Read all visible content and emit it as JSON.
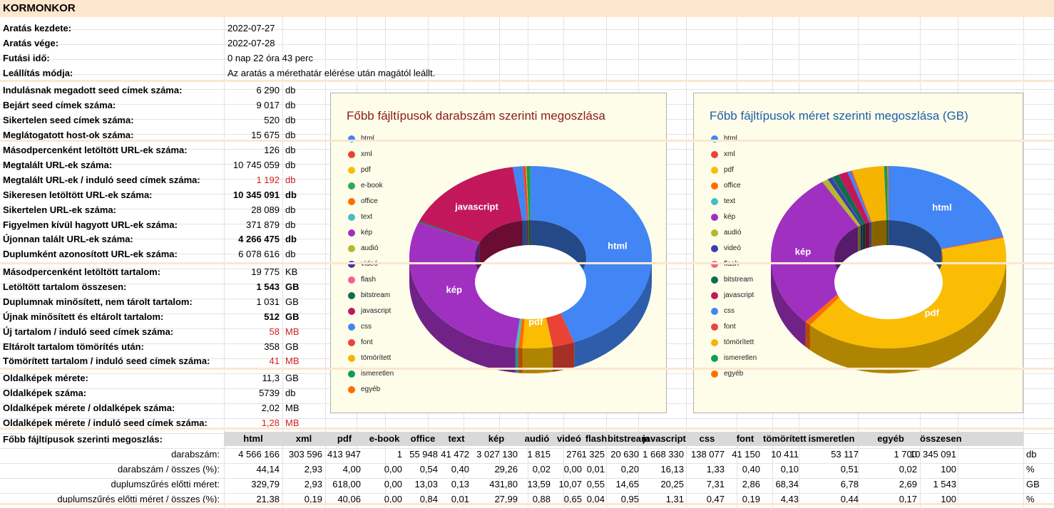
{
  "title": "KORMONKOR",
  "info": [
    {
      "label": "Aratás kezdete:",
      "value": "2022-07-27"
    },
    {
      "label": "Aratás vége:",
      "value": "2022-07-28"
    },
    {
      "label": "Futási idő:",
      "value": "0 nap 22 óra 43 perc"
    },
    {
      "label": "Leállítás módja:",
      "value": "Az aratás a mérethatár elérése után magától leállt."
    }
  ],
  "stats": [
    {
      "label": "Indulásnak megadott seed címek száma:",
      "value": "6 290",
      "unit": "db"
    },
    {
      "label": "Bejárt seed címek száma:",
      "value": "9 017",
      "unit": "db"
    },
    {
      "label": "Sikertelen seed címek száma:",
      "value": "520",
      "unit": "db"
    },
    {
      "label": "Meglátogatott host-ok száma:",
      "value": "15 675",
      "unit": "db"
    },
    {
      "label": "Másodpercenként letöltött URL-ek száma:",
      "value": "126",
      "unit": "db"
    },
    {
      "label": "Megtalált URL-ek száma:",
      "value": "10 745 059",
      "unit": "db"
    },
    {
      "label": "Megtalált URL-ek / induló seed címek száma:",
      "value": "1 192",
      "unit": "db"
    },
    {
      "label": "Sikeresen letöltött URL-ek száma:",
      "value": "10 345 091",
      "unit": "db"
    },
    {
      "label": "Sikertelen URL-ek száma:",
      "value": "28 089",
      "unit": "db"
    },
    {
      "label": "Figyelmen kívül hagyott URL-ek száma:",
      "value": "371 879",
      "unit": "db"
    },
    {
      "label": "Újonnan talált URL-ek száma:",
      "value": "4 266 475",
      "unit": "db"
    },
    {
      "label": "Duplumként azonosított URL-ek száma:",
      "value": "6 078 616",
      "unit": "db"
    },
    {
      "label": "Másodpercenként letöltött tartalom:",
      "value": "19 775",
      "unit": "KB"
    },
    {
      "label": "Letöltött tartalom összesen:",
      "value": "1 543",
      "unit": "GB"
    },
    {
      "label": "Duplumnak minősített, nem tárolt tartalom:",
      "value": "1 031",
      "unit": "GB"
    },
    {
      "label": "Újnak minősített és eltárolt tartalom:",
      "value": "512",
      "unit": "GB"
    },
    {
      "label": "Új tartalom / induló seed címek száma:",
      "value": "58",
      "unit": "MB"
    },
    {
      "label": "Eltárolt tartalom tömörítés után:",
      "value": "358",
      "unit": "GB"
    },
    {
      "label": "Tömörített tartalom / induló seed címek száma:",
      "value": "41",
      "unit": "MB"
    },
    {
      "label": "Oldalképek mérete:",
      "value": "11,3",
      "unit": "GB"
    },
    {
      "label": "Oldalképek száma:",
      "value": "5739",
      "unit": "db"
    },
    {
      "label": "Oldalképek mérete  / oldalképek száma:",
      "value": "2,02",
      "unit": "MB"
    },
    {
      "label": "Oldalképek mérete  / induló seed címek száma:",
      "value": "1,28",
      "unit": "MB"
    }
  ],
  "colors": {
    "html": "#4285f4",
    "xml": "#ea4335",
    "pdf": "#fbbc04",
    "e-book": "#34a853",
    "office": "#ff6d01",
    "text": "#46bdc6",
    "kep": "#a030c0",
    "audio": "#b5b82c",
    "video": "#3b3ea8",
    "flash": "#f06292",
    "bitstream": "#0b6e4f",
    "javascript": "#c2185b",
    "css": "#4285f4",
    "font": "#e8453c",
    "tomoritett": "#f4b400",
    "ismeretlen": "#0f9d58",
    "egyeb": "#ff6d00"
  },
  "chart_left": {
    "title": "Főbb fájltípusok darabszám szerinti megoszlása",
    "legend": [
      "html",
      "xml",
      "pdf",
      "e-book",
      "office",
      "text",
      "kép",
      "audió",
      "videó",
      "flash",
      "bitstream",
      "javascript",
      "css",
      "font",
      "tömörített",
      "ismeretlen",
      "egyéb"
    ],
    "slice_labels": {
      "html": "html",
      "kep": "kép",
      "pdf": "pdf",
      "javascript": "javascript"
    }
  },
  "chart_right": {
    "title": "Főbb fájltípusok méret szerinti megoszlása (GB)",
    "legend": [
      "html",
      "xml",
      "pdf",
      "office",
      "text",
      "kép",
      "audió",
      "videó",
      "flash",
      "bitstream",
      "javascript",
      "css",
      "font",
      "tömörített",
      "ismeretlen",
      "egyéb"
    ],
    "slice_labels": {
      "html": "html",
      "kep": "kép",
      "pdf": "pdf"
    }
  },
  "chart_data": [
    {
      "type": "pie",
      "title": "Főbb fájltípusok darabszám szerinti megoszlása",
      "categories": [
        "html",
        "xml",
        "pdf",
        "e-book",
        "office",
        "text",
        "kép",
        "audió",
        "videó",
        "flash",
        "bitstream",
        "javascript",
        "css",
        "font",
        "tömörített",
        "ismeretlen",
        "egyéb"
      ],
      "values": [
        44.14,
        2.93,
        4.0,
        0.0,
        0.54,
        0.4,
        29.26,
        0.02,
        0.0,
        0.01,
        0.2,
        16.13,
        1.33,
        0.4,
        0.1,
        0.51,
        0.02
      ]
    },
    {
      "type": "pie",
      "title": "Főbb fájltípusok méret szerinti megoszlása (GB)",
      "categories": [
        "html",
        "xml",
        "pdf",
        "office",
        "text",
        "kép",
        "audió",
        "videó",
        "flash",
        "bitstream",
        "javascript",
        "css",
        "font",
        "tömörített",
        "ismeretlen",
        "egyéb"
      ],
      "values": [
        329.79,
        2.93,
        618.0,
        13.03,
        0.13,
        431.8,
        13.59,
        10.07,
        0.55,
        14.65,
        20.25,
        7.31,
        2.86,
        68.34,
        6.78,
        2.69
      ]
    }
  ],
  "table": {
    "title": "Főbb fájltípusok szerinti megoszlás:",
    "headers": [
      "html",
      "xml",
      "pdf",
      "e-book",
      "office",
      "text",
      "kép",
      "audió",
      "videó",
      "flash",
      "bitstream",
      "javascript",
      "css",
      "font",
      "tömörített",
      "ismeretlen",
      "egyéb",
      "összesen"
    ],
    "rows": [
      {
        "label": "darabszám:",
        "cells": [
          "4 566 166",
          "303 596",
          "413 947",
          "1",
          "55 948",
          "41 472",
          "3 027 130",
          "1 815",
          "276",
          "1 325",
          "20 630",
          "1 668 330",
          "138 077",
          "41 150",
          "10 411",
          "53 117",
          "1 700",
          "10 345 091"
        ],
        "unit": "db"
      },
      {
        "label": "darabszám / összes (%):",
        "cells": [
          "44,14",
          "2,93",
          "4,00",
          "0,00",
          "0,54",
          "0,40",
          "29,26",
          "0,02",
          "0,00",
          "0,01",
          "0,20",
          "16,13",
          "1,33",
          "0,40",
          "0,10",
          "0,51",
          "0,02",
          "100"
        ],
        "unit": "%"
      },
      {
        "label": "duplumszűrés előtti méret:",
        "cells": [
          "329,79",
          "2,93",
          "618,00",
          "0,00",
          "13,03",
          "0,13",
          "431,80",
          "13,59",
          "10,07",
          "0,55",
          "14,65",
          "20,25",
          "7,31",
          "2,86",
          "68,34",
          "6,78",
          "2,69",
          "1 543"
        ],
        "unit": "GB"
      },
      {
        "label": "duplumszűrés előtti méret / összes (%):",
        "cells": [
          "21,38",
          "0,19",
          "40,06",
          "0,00",
          "0,84",
          "0,01",
          "27,99",
          "0,88",
          "0,65",
          "0,04",
          "0,95",
          "1,31",
          "0,47",
          "0,19",
          "4,43",
          "0,44",
          "0,17",
          "100"
        ],
        "unit": "%"
      }
    ]
  }
}
